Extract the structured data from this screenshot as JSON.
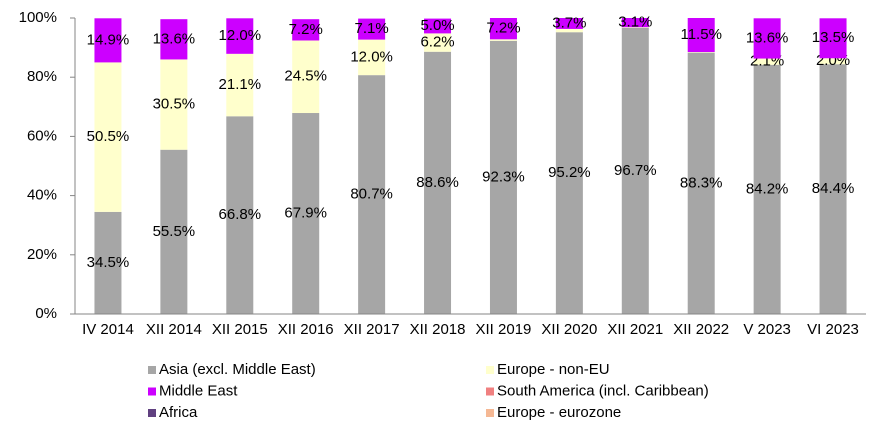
{
  "chart_data": {
    "type": "stacked_bar_100",
    "categories": [
      "IV 2014",
      "XII 2014",
      "XII 2015",
      "XII 2016",
      "XII 2017",
      "XII 2018",
      "XII 2019",
      "XII 2020",
      "XII 2021",
      "XII 2022",
      "V 2023",
      "VI 2023"
    ],
    "series": [
      {
        "name": "Asia (excl. Middle East)",
        "color": "#a6a6a6",
        "values": [
          34.5,
          55.5,
          66.8,
          67.9,
          80.7,
          88.6,
          92.3,
          95.2,
          96.7,
          88.3,
          84.2,
          84.4
        ],
        "value_labels": [
          "34.5%",
          "55.5%",
          "66.8%",
          "67.9%",
          "80.7%",
          "88.6%",
          "92.3%",
          "95.2%",
          "96.7%",
          "88.3%",
          "84.2%",
          "84.4%"
        ]
      },
      {
        "name": "Europe - non-EU",
        "color": "#ffffcc",
        "values": [
          50.5,
          30.5,
          21.1,
          24.5,
          12.0,
          6.2,
          0.5,
          1.1,
          0.2,
          0.2,
          2.1,
          2.0
        ],
        "value_labels": [
          "50.5%",
          "30.5%",
          "21.1%",
          "24.5%",
          "12.0%",
          "6.2%",
          null,
          null,
          null,
          null,
          "2.1%",
          "2.0%"
        ]
      },
      {
        "name": "Middle East",
        "color": "#cc00ff",
        "values": [
          14.9,
          13.6,
          12.0,
          7.2,
          7.1,
          5.0,
          7.2,
          3.7,
          3.1,
          11.5,
          13.6,
          13.5
        ],
        "value_labels": [
          "14.9%",
          "13.6%",
          "12.0%",
          "7.2%",
          "7.1%",
          "5.0%",
          "7.2%",
          "3.7%",
          "3.1%",
          "11.5%",
          "13.6%",
          "13.5%"
        ]
      },
      {
        "name": "South America (incl. Caribbean)",
        "color": "#f08080",
        "values": [
          0,
          0,
          0,
          0,
          0,
          0,
          0,
          0,
          0,
          0,
          0,
          0
        ]
      },
      {
        "name": "Africa",
        "color": "#604080",
        "values": [
          0,
          0,
          0,
          0,
          0,
          0,
          0,
          0,
          0,
          0,
          0,
          0
        ]
      },
      {
        "name": "Europe - eurozone",
        "color": "#f5b894",
        "values": [
          0,
          0,
          0,
          0,
          0,
          0,
          0,
          0,
          0,
          0,
          0,
          0
        ]
      }
    ],
    "ylim": [
      0,
      100
    ],
    "yticks": [
      {
        "value": 0,
        "label": "0%"
      },
      {
        "value": 20,
        "label": "20%"
      },
      {
        "value": 40,
        "label": "40%"
      },
      {
        "value": 60,
        "label": "60%"
      },
      {
        "value": 80,
        "label": "80%"
      },
      {
        "value": 100,
        "label": "100%"
      }
    ],
    "grid": false,
    "legend": "bottom"
  }
}
